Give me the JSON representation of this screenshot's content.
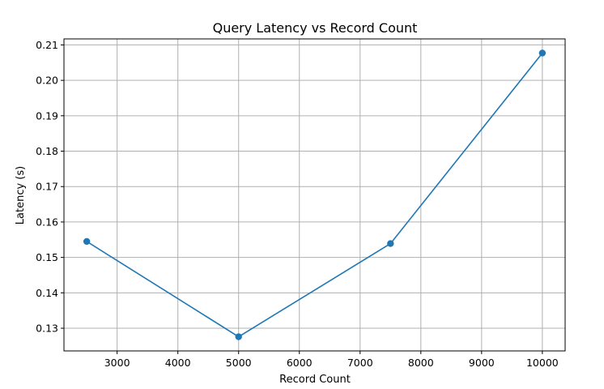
{
  "chart_data": {
    "type": "line",
    "title": "Query Latency vs Record Count",
    "xlabel": "Record Count",
    "ylabel": "Latency (s)",
    "x": [
      2500,
      5000,
      7500,
      10000
    ],
    "series": [
      {
        "values": [
          0.1545,
          0.1276,
          0.1539,
          0.2077
        ],
        "color": "#1f77b4",
        "marker": "circle"
      }
    ],
    "xlim": [
      2125,
      10375
    ],
    "ylim": [
      0.1236,
      0.2117
    ],
    "xticks": [
      3000,
      4000,
      5000,
      6000,
      7000,
      8000,
      9000,
      10000
    ],
    "xtick_labels": [
      "3000",
      "4000",
      "5000",
      "6000",
      "7000",
      "8000",
      "9000",
      "10000"
    ],
    "yticks": [
      0.13,
      0.14,
      0.15,
      0.16,
      0.17,
      0.18,
      0.19,
      0.2,
      0.21
    ],
    "ytick_labels": [
      "0.13",
      "0.14",
      "0.15",
      "0.16",
      "0.17",
      "0.18",
      "0.19",
      "0.20",
      "0.21"
    ],
    "grid": true,
    "legend": false
  }
}
